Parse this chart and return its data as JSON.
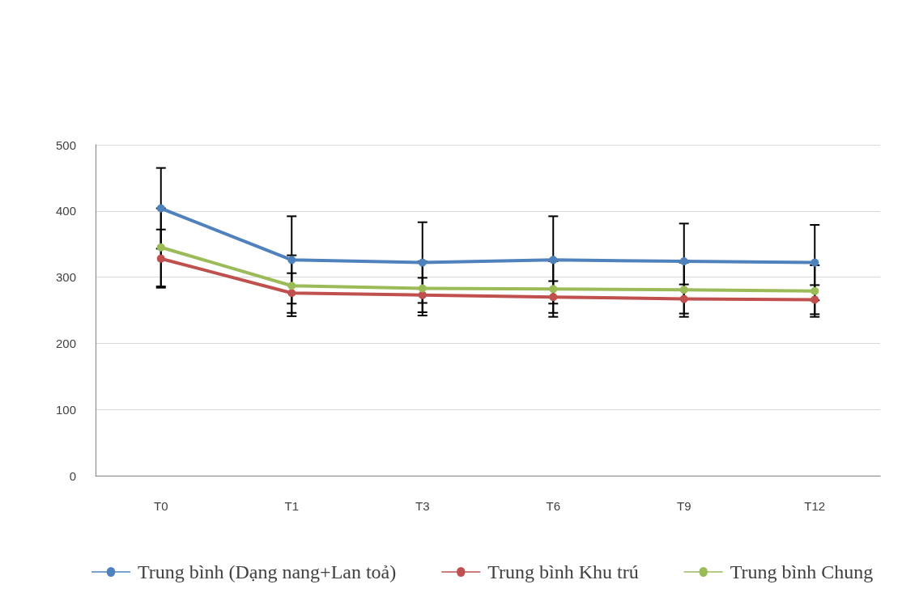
{
  "chart_data": {
    "type": "line",
    "categories": [
      "T0",
      "T1",
      "T3",
      "T6",
      "T9",
      "T12"
    ],
    "series": [
      {
        "name": "Trung bình (Dạng nang+Lan toả)",
        "color": "#4f81bd",
        "values": [
          404,
          326,
          322,
          326,
          324,
          322
        ],
        "errors": [
          61,
          66,
          61,
          66,
          57,
          57
        ]
      },
      {
        "name": "Trung bình Khu trú",
        "color": "#c0504d",
        "values": [
          328,
          276,
          273,
          270,
          267,
          266
        ],
        "errors": [
          44,
          30,
          26,
          24,
          22,
          22
        ]
      },
      {
        "name": "Trung bình Chung",
        "color": "#9bbb59",
        "values": [
          345,
          287,
          283,
          282,
          281,
          279
        ],
        "errors": [
          59,
          46,
          41,
          42,
          41,
          39
        ]
      }
    ],
    "ylim": [
      0,
      500
    ],
    "yticks": [
      0,
      100,
      200,
      300,
      400,
      500
    ],
    "grid": "y",
    "legend": "bottom",
    "marker": "circle",
    "line_style": "solid"
  }
}
